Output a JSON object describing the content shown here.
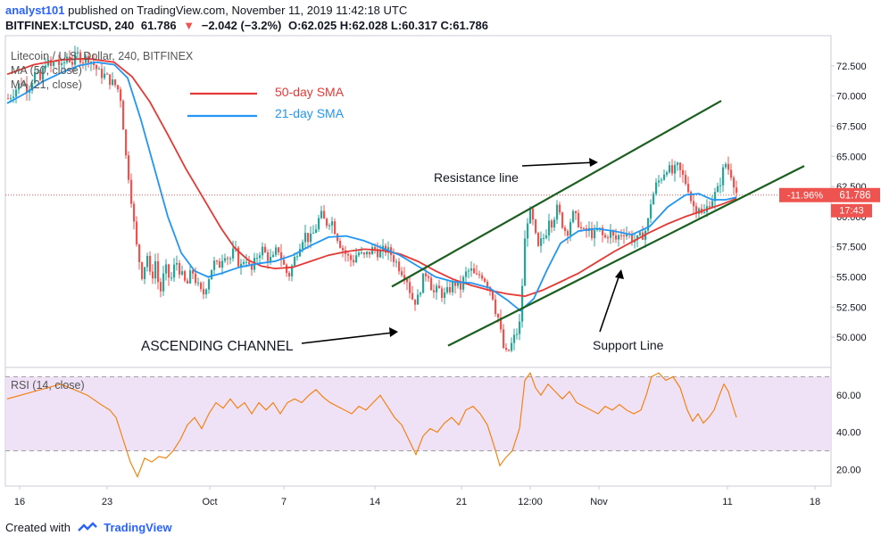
{
  "header": {
    "author": "analyst101",
    "published_text": "published on TradingView.com, November 11, 2019 11:42:18 UTC",
    "symbol_line": "BITFINEX:LTCUSD, 240",
    "last_price": "61.786",
    "change_arrow": "▼",
    "change": "−2.042 (−3.2%)",
    "ohlc": "O:62.025 H:62.028 L:60.317 C:61.786"
  },
  "legend": {
    "title": "Litecoin / U.S. Dollar, 240, BITFINEX",
    "ma50": "MA (50, close)",
    "ma21": "MA (21, close)",
    "rsi": "RSI (14, close)"
  },
  "colors": {
    "up": "#26a69a",
    "down": "#ef5350",
    "sma50": "#e53935",
    "sma21": "#2196f3",
    "channel": "#1b5e20",
    "rsi": "#f57c00",
    "rsi_band": "#ecdcf5"
  },
  "annotations": {
    "sma50_label": "50-day SMA",
    "sma21_label": "21-day SMA",
    "resistance": "Resistance line",
    "ascending": "ASCENDING CHANNEL",
    "support": "Support Line"
  },
  "price_tag": {
    "percent": "-11.96%",
    "price": "61.786",
    "countdown": "17:43"
  },
  "footer": {
    "created_with": "Created with",
    "brand": "TradingView"
  },
  "chart_data": [
    {
      "type": "candlestick",
      "title": "Litecoin / U.S. Dollar, 240, BITFINEX",
      "ylim": [
        47.5,
        75.0
      ],
      "y_ticks": [
        "72.500",
        "70.000",
        "67.500",
        "65.000",
        "62.500",
        "60.000",
        "57.500",
        "55.000",
        "52.500",
        "50.000"
      ],
      "x_ticks": [
        "16",
        "23",
        "Oct",
        "7",
        "14",
        "21",
        "12:00",
        "Nov",
        "11",
        "18"
      ],
      "current_price": 61.786,
      "price_path": [
        [
          0,
          69.8
        ],
        [
          8,
          70.5
        ],
        [
          15,
          71.2
        ],
        [
          22,
          70.6
        ],
        [
          30,
          71.8
        ],
        [
          36,
          71.3
        ],
        [
          42,
          72.9
        ],
        [
          48,
          72.4
        ],
        [
          54,
          73.0
        ],
        [
          60,
          72.3
        ],
        [
          66,
          73.3
        ],
        [
          72,
          72.8
        ],
        [
          78,
          73.4
        ],
        [
          84,
          73.0
        ],
        [
          90,
          73.2
        ],
        [
          96,
          72.6
        ],
        [
          102,
          71.9
        ],
        [
          108,
          71.7
        ],
        [
          114,
          71.3
        ],
        [
          118,
          71.0
        ],
        [
          122,
          70.8
        ],
        [
          127,
          69.6
        ],
        [
          130,
          66.5
        ],
        [
          133,
          64.2
        ],
        [
          136,
          63.0
        ],
        [
          140,
          60.0
        ],
        [
          144,
          57.5
        ],
        [
          150,
          55.2
        ],
        [
          156,
          56.8
        ],
        [
          160,
          54.5
        ],
        [
          165,
          56.3
        ],
        [
          170,
          53.5
        ],
        [
          176,
          55.8
        ],
        [
          182,
          54.6
        ],
        [
          188,
          56.4
        ],
        [
          194,
          55.2
        ],
        [
          200,
          54.2
        ],
        [
          206,
          55.6
        ],
        [
          212,
          54.3
        ],
        [
          218,
          53.4
        ],
        [
          224,
          54.8
        ],
        [
          230,
          56.2
        ],
        [
          236,
          55.8
        ],
        [
          242,
          57.1
        ],
        [
          248,
          56.4
        ],
        [
          254,
          57.3
        ],
        [
          260,
          55.7
        ],
        [
          266,
          56.8
        ],
        [
          272,
          55.3
        ],
        [
          278,
          56.6
        ],
        [
          284,
          57.4
        ],
        [
          290,
          56.7
        ],
        [
          296,
          56.3
        ],
        [
          302,
          57.5
        ],
        [
          308,
          56.1
        ],
        [
          314,
          55.0
        ],
        [
          320,
          56.3
        ],
        [
          326,
          57.6
        ],
        [
          332,
          58.6
        ],
        [
          338,
          58.0
        ],
        [
          344,
          58.9
        ],
        [
          350,
          60.2
        ],
        [
          356,
          59.4
        ],
        [
          362,
          59.8
        ],
        [
          368,
          58.5
        ],
        [
          374,
          57.4
        ],
        [
          380,
          56.7
        ],
        [
          386,
          56.3
        ],
        [
          392,
          57.1
        ],
        [
          398,
          56.6
        ],
        [
          404,
          57.0
        ],
        [
          410,
          57.4
        ],
        [
          416,
          56.9
        ],
        [
          422,
          57.3
        ],
        [
          428,
          57.0
        ],
        [
          434,
          56.3
        ],
        [
          440,
          55.6
        ],
        [
          446,
          55.1
        ],
        [
          452,
          53.3
        ],
        [
          458,
          52.9
        ],
        [
          464,
          54.7
        ],
        [
          470,
          55.6
        ],
        [
          476,
          53.6
        ],
        [
          482,
          54.0
        ],
        [
          488,
          53.4
        ],
        [
          494,
          53.9
        ],
        [
          500,
          54.6
        ],
        [
          506,
          53.9
        ],
        [
          512,
          55.2
        ],
        [
          518,
          55.6
        ],
        [
          524,
          54.9
        ],
        [
          530,
          55.3
        ],
        [
          536,
          54.6
        ],
        [
          542,
          53.8
        ],
        [
          546,
          52.3
        ],
        [
          550,
          51.4
        ],
        [
          554,
          49.3
        ],
        [
          558,
          48.6
        ],
        [
          562,
          49.0
        ],
        [
          566,
          49.8
        ],
        [
          570,
          50.4
        ],
        [
          574,
          51.3
        ],
        [
          578,
          57.4
        ],
        [
          582,
          59.8
        ],
        [
          586,
          60.4
        ],
        [
          590,
          58.6
        ],
        [
          594,
          57.3
        ],
        [
          598,
          58.1
        ],
        [
          602,
          58.4
        ],
        [
          606,
          60.0
        ],
        [
          610,
          59.4
        ],
        [
          614,
          60.8
        ],
        [
          618,
          60.1
        ],
        [
          622,
          59.2
        ],
        [
          626,
          58.6
        ],
        [
          632,
          60.2
        ],
        [
          638,
          59.7
        ],
        [
          644,
          58.6
        ],
        [
          650,
          58.9
        ],
        [
          656,
          58.4
        ],
        [
          662,
          59.0
        ],
        [
          668,
          58.1
        ],
        [
          674,
          58.8
        ],
        [
          680,
          58.0
        ],
        [
          686,
          58.6
        ],
        [
          692,
          58.8
        ],
        [
          698,
          58.2
        ],
        [
          704,
          58.0
        ],
        [
          710,
          58.4
        ],
        [
          716,
          59.1
        ],
        [
          720,
          61.2
        ],
        [
          726,
          62.6
        ],
        [
          732,
          63.3
        ],
        [
          738,
          64.1
        ],
        [
          744,
          63.6
        ],
        [
          750,
          64.1
        ],
        [
          756,
          63.3
        ],
        [
          762,
          62.4
        ],
        [
          766,
          61.1
        ],
        [
          770,
          60.6
        ],
        [
          774,
          60.9
        ],
        [
          778,
          59.9
        ],
        [
          782,
          60.6
        ],
        [
          786,
          61.2
        ],
        [
          790,
          61.6
        ],
        [
          796,
          62.3
        ],
        [
          800,
          63.6
        ],
        [
          804,
          64.4
        ],
        [
          808,
          63.8
        ],
        [
          812,
          63.3
        ],
        [
          814,
          62.4
        ],
        [
          817,
          61.786
        ]
      ],
      "sma50_path": [
        [
          0,
          71.8
        ],
        [
          30,
          72.6
        ],
        [
          60,
          73.0
        ],
        [
          90,
          73.1
        ],
        [
          120,
          72.8
        ],
        [
          140,
          71.6
        ],
        [
          160,
          69.5
        ],
        [
          180,
          66.8
        ],
        [
          200,
          64.0
        ],
        [
          220,
          61.5
        ],
        [
          240,
          59.0
        ],
        [
          255,
          57.4
        ],
        [
          270,
          56.4
        ],
        [
          285,
          55.9
        ],
        [
          300,
          55.7
        ],
        [
          320,
          55.8
        ],
        [
          340,
          56.3
        ],
        [
          360,
          56.8
        ],
        [
          380,
          57.1
        ],
        [
          400,
          57.3
        ],
        [
          420,
          57.2
        ],
        [
          440,
          56.9
        ],
        [
          460,
          56.3
        ],
        [
          480,
          55.5
        ],
        [
          500,
          54.8
        ],
        [
          520,
          54.3
        ],
        [
          540,
          53.9
        ],
        [
          560,
          53.6
        ],
        [
          580,
          53.4
        ],
        [
          600,
          53.9
        ],
        [
          620,
          54.6
        ],
        [
          640,
          55.3
        ],
        [
          660,
          56.2
        ],
        [
          680,
          57.1
        ],
        [
          700,
          57.9
        ],
        [
          720,
          58.7
        ],
        [
          740,
          59.4
        ],
        [
          760,
          60.0
        ],
        [
          780,
          60.5
        ],
        [
          800,
          61.0
        ],
        [
          817,
          61.5
        ]
      ],
      "sma21_path": [
        [
          0,
          69.4
        ],
        [
          20,
          70.2
        ],
        [
          40,
          71.2
        ],
        [
          60,
          71.9
        ],
        [
          80,
          72.5
        ],
        [
          100,
          72.8
        ],
        [
          120,
          72.6
        ],
        [
          135,
          71.5
        ],
        [
          150,
          68.0
        ],
        [
          165,
          64.0
        ],
        [
          180,
          60.0
        ],
        [
          195,
          57.0
        ],
        [
          210,
          55.5
        ],
        [
          225,
          55.0
        ],
        [
          240,
          55.3
        ],
        [
          260,
          55.8
        ],
        [
          280,
          56.1
        ],
        [
          300,
          56.3
        ],
        [
          320,
          56.8
        ],
        [
          340,
          57.6
        ],
        [
          360,
          58.3
        ],
        [
          380,
          58.4
        ],
        [
          400,
          58.0
        ],
        [
          420,
          57.4
        ],
        [
          440,
          56.8
        ],
        [
          460,
          55.9
        ],
        [
          480,
          55.0
        ],
        [
          500,
          54.6
        ],
        [
          520,
          54.5
        ],
        [
          540,
          54.1
        ],
        [
          560,
          53.1
        ],
        [
          575,
          52.2
        ],
        [
          590,
          53.2
        ],
        [
          605,
          55.6
        ],
        [
          620,
          57.8
        ],
        [
          640,
          58.8
        ],
        [
          660,
          59.0
        ],
        [
          680,
          58.8
        ],
        [
          700,
          58.5
        ],
        [
          720,
          59.2
        ],
        [
          740,
          60.8
        ],
        [
          760,
          61.8
        ],
        [
          775,
          61.9
        ],
        [
          790,
          61.4
        ],
        [
          805,
          61.4
        ],
        [
          817,
          61.6
        ]
      ],
      "channel_upper": [
        [
          431,
          54.2
        ],
        [
          800,
          69.6
        ]
      ],
      "channel_lower": [
        [
          494,
          49.3
        ],
        [
          893,
          64.2
        ]
      ]
    },
    {
      "type": "line",
      "title": "RSI (14, close)",
      "ylim": [
        11.0,
        75.0
      ],
      "y_ticks": [
        "60.00",
        "40.00",
        "20.00"
      ],
      "band": [
        30,
        70
      ],
      "rsi_path": [
        [
          0,
          58
        ],
        [
          15,
          60
        ],
        [
          30,
          62
        ],
        [
          45,
          64
        ],
        [
          60,
          66
        ],
        [
          75,
          63
        ],
        [
          90,
          60
        ],
        [
          105,
          55
        ],
        [
          115,
          52
        ],
        [
          122,
          48
        ],
        [
          130,
          36
        ],
        [
          138,
          24
        ],
        [
          146,
          16
        ],
        [
          154,
          26
        ],
        [
          162,
          24
        ],
        [
          170,
          27
        ],
        [
          178,
          26
        ],
        [
          186,
          30
        ],
        [
          194,
          36
        ],
        [
          202,
          44
        ],
        [
          210,
          48
        ],
        [
          218,
          42
        ],
        [
          226,
          50
        ],
        [
          234,
          56
        ],
        [
          242,
          53
        ],
        [
          250,
          58
        ],
        [
          258,
          53
        ],
        [
          266,
          56
        ],
        [
          274,
          50
        ],
        [
          282,
          56
        ],
        [
          290,
          52
        ],
        [
          298,
          56
        ],
        [
          306,
          50
        ],
        [
          314,
          56
        ],
        [
          322,
          58
        ],
        [
          330,
          56
        ],
        [
          338,
          60
        ],
        [
          346,
          63
        ],
        [
          354,
          59
        ],
        [
          362,
          56
        ],
        [
          370,
          54
        ],
        [
          378,
          52
        ],
        [
          386,
          50
        ],
        [
          394,
          54
        ],
        [
          402,
          52
        ],
        [
          410,
          56
        ],
        [
          418,
          60
        ],
        [
          426,
          54
        ],
        [
          434,
          48
        ],
        [
          442,
          44
        ],
        [
          450,
          36
        ],
        [
          458,
          28
        ],
        [
          466,
          38
        ],
        [
          474,
          42
        ],
        [
          482,
          40
        ],
        [
          490,
          45
        ],
        [
          498,
          48
        ],
        [
          506,
          44
        ],
        [
          514,
          52
        ],
        [
          522,
          54
        ],
        [
          530,
          50
        ],
        [
          538,
          44
        ],
        [
          546,
          32
        ],
        [
          552,
          22
        ],
        [
          558,
          26
        ],
        [
          566,
          30
        ],
        [
          574,
          42
        ],
        [
          580,
          68
        ],
        [
          586,
          72
        ],
        [
          592,
          64
        ],
        [
          598,
          60
        ],
        [
          606,
          66
        ],
        [
          614,
          62
        ],
        [
          622,
          58
        ],
        [
          630,
          62
        ],
        [
          638,
          56
        ],
        [
          646,
          54
        ],
        [
          654,
          52
        ],
        [
          662,
          50
        ],
        [
          670,
          54
        ],
        [
          678,
          52
        ],
        [
          686,
          55
        ],
        [
          694,
          52
        ],
        [
          702,
          50
        ],
        [
          710,
          52
        ],
        [
          716,
          60
        ],
        [
          722,
          70
        ],
        [
          730,
          72
        ],
        [
          738,
          68
        ],
        [
          746,
          70
        ],
        [
          754,
          64
        ],
        [
          762,
          52
        ],
        [
          768,
          46
        ],
        [
          774,
          50
        ],
        [
          780,
          45
        ],
        [
          786,
          48
        ],
        [
          792,
          52
        ],
        [
          798,
          60
        ],
        [
          803,
          66
        ],
        [
          808,
          62
        ],
        [
          813,
          54
        ],
        [
          817,
          48
        ]
      ]
    }
  ]
}
